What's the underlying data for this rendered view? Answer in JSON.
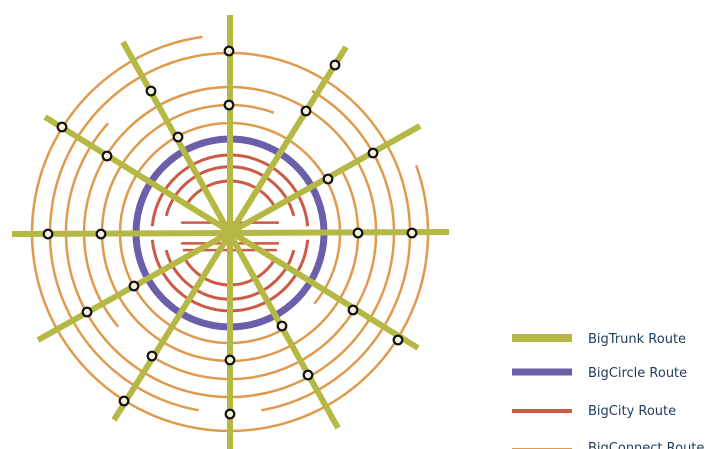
{
  "colors": {
    "trunk": "#b5b842",
    "circle": "#6a5fa8",
    "city": "#cd5a44",
    "connect": "#df9a4c",
    "stop_fill": "#f3f0d6",
    "stop_stroke": "#111111"
  },
  "legend": [
    {
      "key": "trunk",
      "label": "BigTrunk Route"
    },
    {
      "key": "circle",
      "label": "BigCircle Route"
    },
    {
      "key": "city",
      "label": "BigCity Route"
    },
    {
      "key": "connect",
      "label": "BigConnect Route"
    }
  ]
}
